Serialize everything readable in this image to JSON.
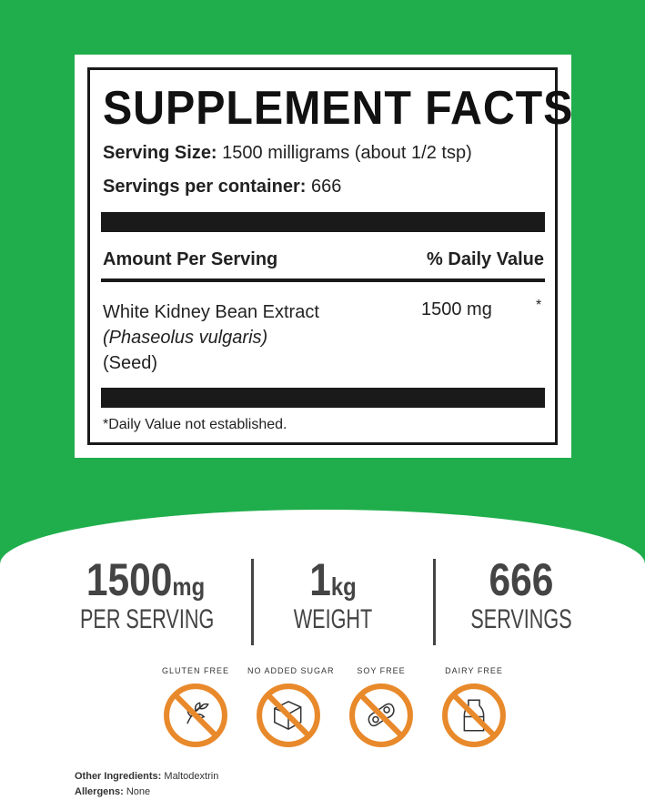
{
  "facts": {
    "title": "SUPPLEMENT FACTS",
    "serving_size_label": "Serving Size:",
    "serving_size_value": "1500 milligrams (about 1/2 tsp)",
    "servings_label": "Servings per container:",
    "servings_value": "666",
    "amount_header": "Amount Per Serving",
    "dv_header": "% Daily Value",
    "ingredient_name": "White Kidney Bean Extract",
    "ingredient_latin": "(Phaseolus vulgaris)",
    "ingredient_part": "(Seed)",
    "ingredient_amount": "1500 mg",
    "ingredient_dv": "*",
    "footnote": "*Daily Value not established."
  },
  "stats": [
    {
      "value": "1500",
      "unit": "mg",
      "label": "PER SERVING"
    },
    {
      "value": "1",
      "unit": "kg",
      "label": "WEIGHT"
    },
    {
      "value": "666",
      "unit": "",
      "label": "SERVINGS"
    }
  ],
  "badges": [
    {
      "label": "GLUTEN FREE",
      "icon": "wheat-icon"
    },
    {
      "label": "NO ADDED SUGAR",
      "icon": "sugar-cube-icon"
    },
    {
      "label": "SOY FREE",
      "icon": "soybean-icon"
    },
    {
      "label": "DAIRY FREE",
      "icon": "milk-bottle-icon"
    }
  ],
  "other": {
    "ingredients_label": "Other Ingredients:",
    "ingredients_value": "Maltodextrin",
    "allergens_label": "Allergens:",
    "allergens_value": "None"
  },
  "colors": {
    "green": "#1fae4b",
    "orange": "#e8892b"
  }
}
